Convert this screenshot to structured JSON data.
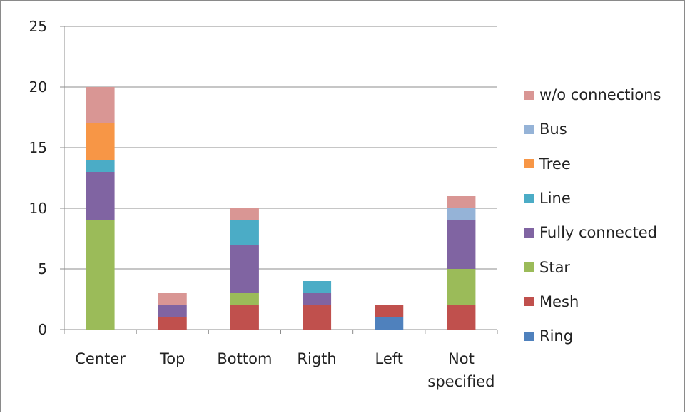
{
  "chart_data": {
    "type": "bar",
    "stacked": true,
    "categories": [
      "Center",
      "Top",
      "Bottom",
      "Rigth",
      "Left",
      "Not specified"
    ],
    "category_labels": [
      [
        "Center"
      ],
      [
        "Top"
      ],
      [
        "Bottom"
      ],
      [
        "Rigth"
      ],
      [
        "Left"
      ],
      [
        "Not",
        "specified"
      ]
    ],
    "ylim": [
      0,
      25
    ],
    "yticks": [
      0,
      5,
      10,
      15,
      20,
      25
    ],
    "grid": true,
    "legend_position": "right",
    "title": "",
    "xlabel": "",
    "ylabel": "",
    "series": [
      {
        "name": "Ring",
        "color": "#4F81BD",
        "values": [
          0,
          0,
          0,
          0,
          1,
          0
        ]
      },
      {
        "name": "Mesh",
        "color": "#C0504D",
        "values": [
          0,
          1,
          2,
          2,
          1,
          2
        ]
      },
      {
        "name": "Star",
        "color": "#9BBB59",
        "values": [
          9,
          0,
          1,
          0,
          0,
          3
        ]
      },
      {
        "name": "Fully connected",
        "color": "#8064A2",
        "values": [
          4,
          1,
          4,
          1,
          0,
          4
        ]
      },
      {
        "name": "Line",
        "color": "#4BACC6",
        "values": [
          1,
          0,
          2,
          1,
          0,
          0
        ]
      },
      {
        "name": "Tree",
        "color": "#F79646",
        "values": [
          3,
          0,
          0,
          0,
          0,
          0
        ]
      },
      {
        "name": "Bus",
        "color": "#95B3D7",
        "values": [
          0,
          0,
          0,
          0,
          0,
          1
        ]
      },
      {
        "name": "w/o connections",
        "color": "#D99694",
        "values": [
          3,
          1,
          1,
          0,
          0,
          1
        ]
      }
    ]
  }
}
